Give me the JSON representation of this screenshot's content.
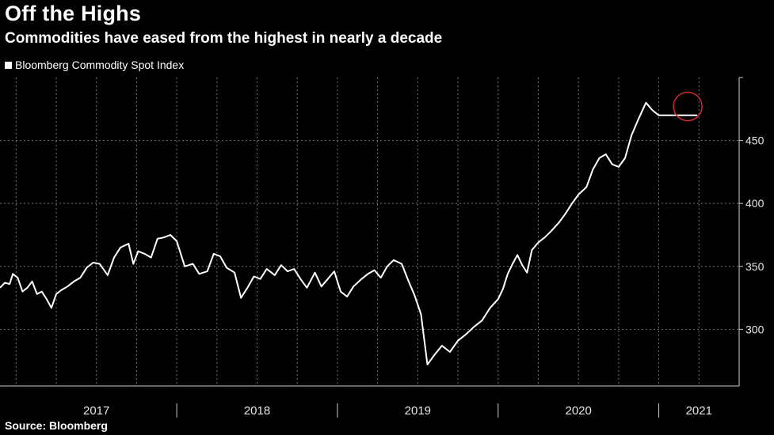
{
  "header": {
    "title": "Off the Highs",
    "subtitle": "Commodities have eased from the highest in nearly a decade"
  },
  "legend": {
    "label": "Bloomberg Commodity Spot Index",
    "color": "#ffffff"
  },
  "footer": {
    "source": "Source: Bloomberg"
  },
  "colors": {
    "background": "#000000",
    "line": "#ffffff",
    "grid": "#9a9a9a",
    "highlight": "#d0282e"
  },
  "chart_data": {
    "type": "line",
    "title": "Off the Highs",
    "subtitle": "Commodities have eased from the highest in nearly a decade",
    "xlabel": "",
    "ylabel": "",
    "x_categories": [
      "2017",
      "2018",
      "2019",
      "2020",
      "2021"
    ],
    "xlim": [
      2016.9,
      2021.5
    ],
    "ylim": [
      255,
      500
    ],
    "y_ticks": [
      300,
      350,
      400,
      450
    ],
    "y_axis_side": "right",
    "grid": "dotted",
    "legend_position": "top-left",
    "highlight": {
      "shape": "circle",
      "x": 2021.18,
      "y": 477
    },
    "series": [
      {
        "name": "Bloomberg Commodity Spot Index",
        "x": [
          2016.9,
          2016.93,
          2016.96,
          2016.98,
          2017.01,
          2017.04,
          2017.07,
          2017.1,
          2017.13,
          2017.16,
          2017.19,
          2017.22,
          2017.25,
          2017.28,
          2017.32,
          2017.36,
          2017.4,
          2017.44,
          2017.48,
          2017.52,
          2017.57,
          2017.61,
          2017.65,
          2017.7,
          2017.73,
          2017.76,
          2017.8,
          2017.84,
          2017.88,
          2017.92,
          2017.96,
          2018.0,
          2018.05,
          2018.1,
          2018.14,
          2018.19,
          2018.23,
          2018.27,
          2018.31,
          2018.36,
          2018.4,
          2018.44,
          2018.48,
          2018.52,
          2018.56,
          2018.61,
          2018.65,
          2018.69,
          2018.73,
          2018.77,
          2018.81,
          2018.86,
          2018.9,
          2018.94,
          2018.98,
          2019.02,
          2019.06,
          2019.1,
          2019.15,
          2019.19,
          2019.23,
          2019.27,
          2019.31,
          2019.35,
          2019.4,
          2019.44,
          2019.48,
          2019.52,
          2019.56,
          2019.6,
          2019.65,
          2019.7,
          2019.75,
          2019.8,
          2019.85,
          2019.9,
          2019.95,
          2020.0,
          2020.03,
          2020.06,
          2020.09,
          2020.12,
          2020.15,
          2020.18,
          2020.21,
          2020.25,
          2020.29,
          2020.33,
          2020.38,
          2020.42,
          2020.46,
          2020.5,
          2020.55,
          2020.59,
          2020.63,
          2020.67,
          2020.71,
          2020.75,
          2020.79,
          2020.83,
          2020.87,
          2020.92,
          2020.96,
          2021.0,
          2021.03,
          2021.06,
          2021.09,
          2021.12,
          2021.15,
          2021.18,
          2021.2,
          2021.22,
          2021.24
        ],
        "values": [
          333,
          337,
          336,
          344,
          341,
          330,
          333,
          338,
          328,
          330,
          324,
          317,
          328,
          331,
          334,
          338,
          341,
          349,
          353,
          352,
          343,
          357,
          365,
          368,
          352,
          362,
          360,
          357,
          372,
          373,
          375,
          370,
          350,
          352,
          344,
          346,
          360,
          358,
          349,
          345,
          325,
          333,
          342,
          340,
          348,
          343,
          351,
          346,
          348,
          340,
          333,
          345,
          334,
          340,
          346,
          330,
          326,
          334,
          340,
          344,
          347,
          341,
          350,
          355,
          352,
          339,
          327,
          312,
          272,
          279,
          287,
          282,
          291,
          296,
          302,
          307,
          317,
          324,
          332,
          344,
          352,
          359,
          351,
          345,
          363,
          369,
          373,
          378,
          385,
          392,
          400,
          407,
          413,
          427,
          436,
          439,
          431,
          429,
          436,
          454,
          466,
          480,
          474,
          470,
          470,
          470,
          470,
          470,
          470,
          470,
          470,
          470,
          470
        ]
      }
    ]
  }
}
